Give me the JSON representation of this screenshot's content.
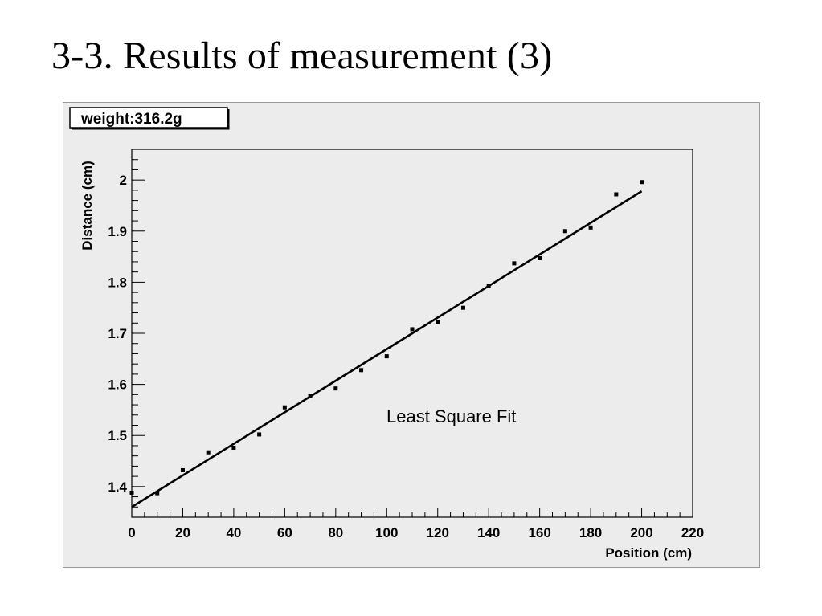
{
  "slide": {
    "title": "3-3. Results of measurement (3)"
  },
  "chart_data": {
    "type": "scatter",
    "stat_box": "weight:316.2g",
    "annotation": "Least Square Fit",
    "xlabel": "Position (cm)",
    "ylabel": "Distance (cm)",
    "xlim": [
      0,
      220
    ],
    "ylim": [
      1.34,
      2.06
    ],
    "xticks": [
      0,
      20,
      40,
      60,
      80,
      100,
      120,
      140,
      160,
      180,
      200,
      220
    ],
    "xtick_labels": [
      "0",
      "20",
      "40",
      "60",
      "80",
      "100",
      "120",
      "140",
      "160",
      "180",
      "200",
      "220"
    ],
    "yticks": [
      1.4,
      1.5,
      1.6,
      1.7,
      1.8,
      1.9,
      2.0
    ],
    "ytick_labels": [
      "1.4",
      "1.5",
      "1.6",
      "1.7",
      "1.8",
      "1.9",
      "2"
    ],
    "grid": false,
    "series": [
      {
        "kind": "points",
        "x": [
          0,
          10,
          20,
          30,
          40,
          50,
          60,
          70,
          80,
          90,
          100,
          110,
          120,
          130,
          140,
          150,
          160,
          170,
          180,
          190,
          200
        ],
        "y": [
          1.388,
          1.387,
          1.432,
          1.467,
          1.476,
          1.502,
          1.555,
          1.577,
          1.592,
          1.628,
          1.655,
          1.708,
          1.722,
          1.75,
          1.792,
          1.837,
          1.847,
          1.9,
          1.907,
          1.972,
          1.996
        ]
      },
      {
        "kind": "fit-line",
        "x": [
          0,
          200
        ],
        "y": [
          1.36,
          1.978
        ]
      }
    ]
  }
}
